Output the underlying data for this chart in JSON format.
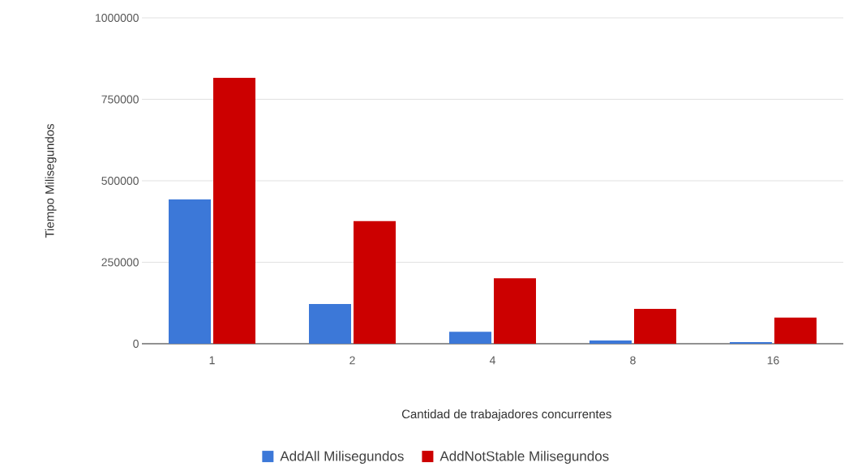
{
  "chart_data": {
    "type": "bar",
    "xlabel": "Cantidad de trabajadores concurrentes",
    "ylabel": "Tiempo Milisegundos",
    "categories": [
      "1",
      "2",
      "4",
      "8",
      "16"
    ],
    "series": [
      {
        "name": "AddAll Milisegundos",
        "color": "#3c78d8",
        "values": [
          443000,
          122000,
          37000,
          10000,
          5000
        ]
      },
      {
        "name": "AddNotStable Milisegundos",
        "color": "#cc0000",
        "values": [
          816000,
          376000,
          201000,
          107000,
          80000
        ]
      }
    ],
    "ylim": [
      0,
      1000000
    ],
    "yticks": [
      0,
      250000,
      500000,
      750000,
      1000000
    ],
    "grid": "y",
    "legend": "bottom"
  }
}
